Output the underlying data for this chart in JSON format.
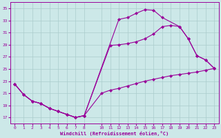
{
  "bg_color": "#cce8e8",
  "line_color": "#990099",
  "grid_color": "#aacccc",
  "xlabel": "Windchill (Refroidissement éolien,°C)",
  "xlim": [
    -0.5,
    23.5
  ],
  "ylim": [
    16.0,
    36.0
  ],
  "yticks": [
    17,
    19,
    21,
    23,
    25,
    27,
    29,
    31,
    33,
    35
  ],
  "xticks": [
    0,
    1,
    2,
    3,
    4,
    5,
    6,
    7,
    8,
    10,
    11,
    12,
    13,
    14,
    15,
    16,
    17,
    18,
    19,
    20,
    21,
    22,
    23
  ],
  "curve1_x": [
    0,
    1,
    2,
    3,
    4,
    5,
    6,
    7,
    8,
    12,
    13,
    14,
    15,
    16,
    17,
    19,
    20,
    21,
    22,
    23
  ],
  "curve1_y": [
    22.5,
    20.8,
    19.7,
    19.3,
    18.5,
    18.0,
    17.5,
    17.0,
    17.3,
    33.2,
    33.5,
    34.2,
    34.8,
    34.7,
    33.5,
    32.0,
    30.0,
    27.2,
    26.5,
    25.1
  ],
  "curve2_x": [
    0,
    1,
    2,
    3,
    4,
    5,
    6,
    7,
    8,
    11,
    12,
    13,
    14,
    15,
    16,
    17,
    18,
    19,
    20,
    21,
    22,
    23
  ],
  "curve2_y": [
    22.5,
    20.8,
    19.7,
    19.3,
    18.5,
    18.0,
    17.5,
    17.0,
    17.3,
    28.9,
    29.0,
    29.2,
    29.5,
    30.0,
    30.8,
    32.0,
    32.2,
    32.0,
    30.0,
    27.2,
    26.5,
    25.1
  ],
  "curve3_x": [
    0,
    1,
    2,
    3,
    4,
    5,
    6,
    7,
    8,
    10,
    11,
    12,
    13,
    14,
    15,
    16,
    17,
    18,
    19,
    20,
    21,
    22,
    23
  ],
  "curve3_y": [
    22.5,
    20.8,
    19.7,
    19.3,
    18.5,
    18.0,
    17.5,
    17.0,
    17.3,
    21.0,
    21.5,
    21.8,
    22.2,
    22.6,
    23.0,
    23.3,
    23.6,
    23.9,
    24.1,
    24.3,
    24.5,
    24.8,
    25.1
  ]
}
